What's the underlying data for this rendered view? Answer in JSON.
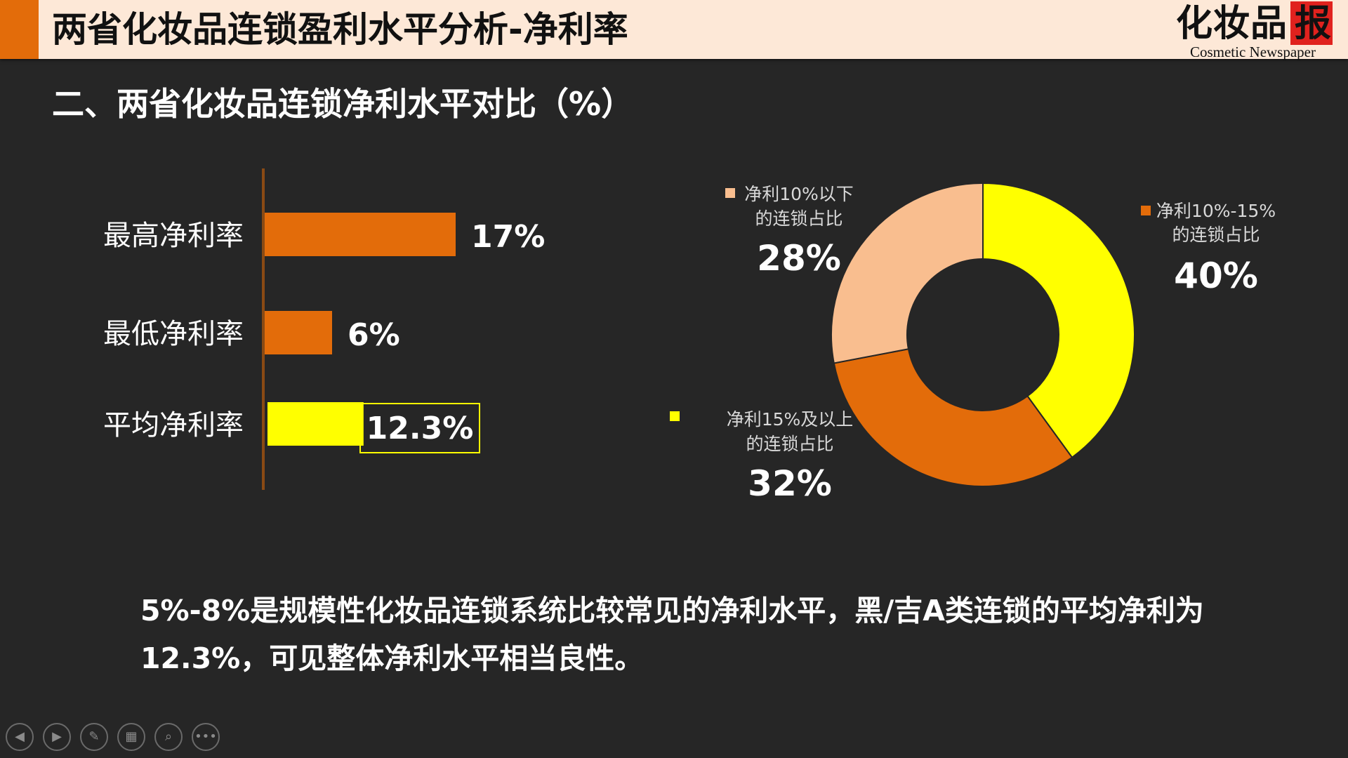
{
  "header": {
    "title": "两省化妆品连锁盈利水平分析-净利率",
    "logo_text": "化妆品",
    "logo_stamp": "报",
    "logo_sub": "Cosmetic Newspaper"
  },
  "section_title": "二、两省化妆品连锁净利水平对比（%）",
  "colors": {
    "orange": "#e36c0a",
    "yellow": "#ffff00",
    "peach": "#f9be8f",
    "dark": "#262626"
  },
  "chart_data": [
    {
      "type": "bar",
      "orientation": "horizontal",
      "categories": [
        "最高净利率",
        "最低净利率",
        "平均净利率"
      ],
      "values": [
        17,
        6,
        12.3
      ],
      "data_labels": [
        "17%",
        "6%",
        "12.3%"
      ],
      "colors": [
        "#e36c0a",
        "#e36c0a",
        "#ffff00"
      ]
    },
    {
      "type": "pie",
      "style": "donut",
      "slices": [
        {
          "label": "净利10%-15%的连锁占比",
          "label_lines": [
            "净利10%-15%",
            "的连锁占比"
          ],
          "value": 40,
          "display": "40%",
          "color": "#ffff00",
          "legend_color": "#e36c0a"
        },
        {
          "label": "净利15%及以上的连锁占比",
          "label_lines": [
            "净利15%及以上",
            "的连锁占比"
          ],
          "value": 32,
          "display": "32%",
          "color": "#e36c0a",
          "legend_color": "#ffff00"
        },
        {
          "label": "净利10%以下的连锁占比",
          "label_lines": [
            "净利10%以下",
            "的连锁占比"
          ],
          "value": 28,
          "display": "28%",
          "color": "#f9be8f",
          "legend_color": "#f9be8f"
        }
      ]
    }
  ],
  "bottom_text": "5%-8%是规模性化妆品连锁系统比较常见的净利水平，黑/吉A类连锁的平均净利为12.3%，可见整体净利水平相当良性。",
  "nav": {
    "icons": [
      "prev-icon",
      "next-icon",
      "pen-icon",
      "slides-icon",
      "zoom-icon",
      "more-icon"
    ],
    "glyphs": [
      "◀",
      "▶",
      "✎",
      "▦",
      "⌕",
      "•••"
    ]
  }
}
